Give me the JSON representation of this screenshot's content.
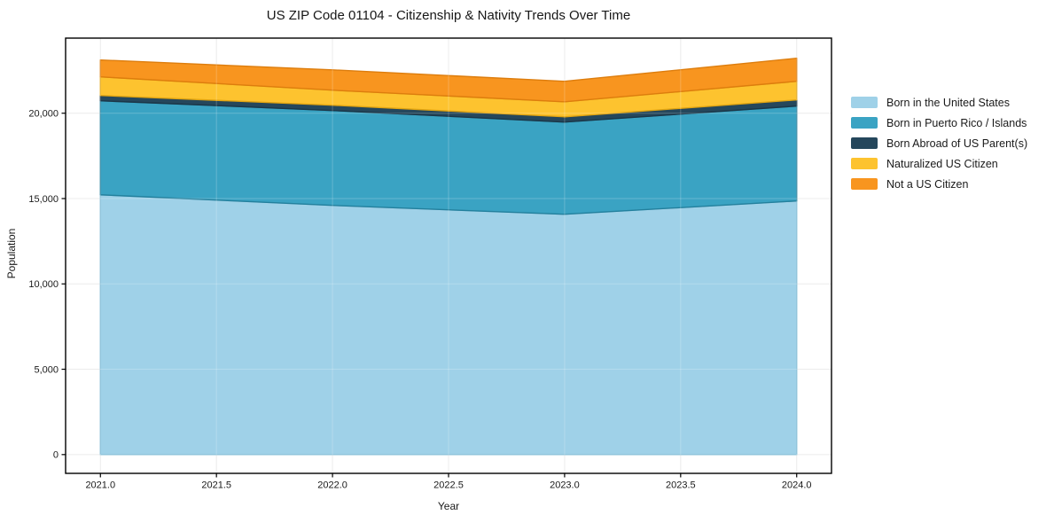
{
  "chart_data": {
    "type": "area",
    "stacked": true,
    "title": "US ZIP Code 01104 - Citizenship & Nativity Trends Over Time",
    "xlabel": "Year",
    "ylabel": "Population",
    "x": [
      2021,
      2022,
      2023,
      2024
    ],
    "series": [
      {
        "name": "Born in the United States",
        "values": [
          15220,
          14600,
          14080,
          14860
        ],
        "color": "#9fd1e8",
        "edge": "#7cb9d4"
      },
      {
        "name": "Born in Puerto Rico / Islands",
        "values": [
          5510,
          5560,
          5400,
          5560
        ],
        "color": "#3aa3c3",
        "edge": "#23809d"
      },
      {
        "name": "Born Abroad of US Parent(s)",
        "values": [
          310,
          310,
          310,
          360
        ],
        "color": "#25475c",
        "edge": "#1b3647"
      },
      {
        "name": "Naturalized US Citizen",
        "values": [
          1090,
          880,
          880,
          1090
        ],
        "color": "#fdc32f",
        "edge": "#e2a511"
      },
      {
        "name": "Not a US Citizen",
        "values": [
          990,
          1190,
          1200,
          1350
        ],
        "color": "#f8951f",
        "edge": "#dd7d0d"
      }
    ],
    "x_ticks": {
      "values": [
        2021.0,
        2021.5,
        2022.0,
        2022.5,
        2023.0,
        2023.5,
        2024.0
      ],
      "labels": [
        "2021.0",
        "2021.5",
        "2022.0",
        "2022.5",
        "2023.0",
        "2023.5",
        "2024.0"
      ]
    },
    "y_ticks": {
      "values": [
        0,
        5000,
        10000,
        15000,
        20000
      ],
      "labels": [
        "0",
        "5,000",
        "10,000",
        "15,000",
        "20,000"
      ]
    },
    "xlim": [
      2020.85,
      2024.15
    ],
    "ylim": [
      -1100,
      24400
    ],
    "grid": true,
    "legend_position": "right",
    "colors": {
      "frame": "#000000",
      "gridline": "#e7e7e7",
      "tick_text": "#1a1a1a"
    }
  }
}
